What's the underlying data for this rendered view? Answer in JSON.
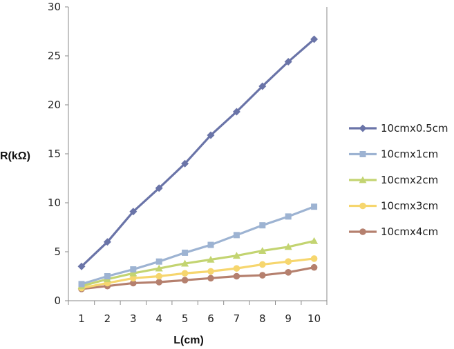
{
  "chart_data": {
    "type": "line",
    "title": "",
    "xlabel": "L(cm)",
    "ylabel": "R(kΩ)",
    "x": [
      1,
      2,
      3,
      4,
      5,
      6,
      7,
      8,
      9,
      10
    ],
    "x_tick_labels": [
      "1",
      "2",
      "3",
      "4",
      "5",
      "6",
      "7",
      "8",
      "9",
      "10"
    ],
    "ylim": [
      0,
      30
    ],
    "y_ticks": [
      0,
      5,
      10,
      15,
      20,
      25,
      30
    ],
    "grid": false,
    "legend_position": "right",
    "series": [
      {
        "name": "10cmx0.5cm",
        "color": "#6A74A8",
        "marker": "diamond",
        "values": [
          3.5,
          6.0,
          9.1,
          11.5,
          14.0,
          16.9,
          19.3,
          21.9,
          24.4,
          26.7
        ]
      },
      {
        "name": "10cmx1cm",
        "color": "#9DB3D2",
        "marker": "square",
        "values": [
          1.7,
          2.5,
          3.2,
          4.0,
          4.9,
          5.7,
          6.7,
          7.7,
          8.6,
          9.6
        ]
      },
      {
        "name": "10cmx2cm",
        "color": "#C3D471",
        "marker": "triangle",
        "values": [
          1.5,
          2.2,
          2.8,
          3.3,
          3.8,
          4.2,
          4.6,
          5.1,
          5.5,
          6.1
        ]
      },
      {
        "name": "10cmx3cm",
        "color": "#F6D66E",
        "marker": "circle",
        "values": [
          1.3,
          1.8,
          2.3,
          2.5,
          2.8,
          3.0,
          3.3,
          3.7,
          4.0,
          4.3
        ]
      },
      {
        "name": "10cmx4cm",
        "color": "#B5806E",
        "marker": "circle",
        "values": [
          1.2,
          1.5,
          1.8,
          1.9,
          2.1,
          2.3,
          2.5,
          2.6,
          2.9,
          3.4
        ]
      }
    ]
  }
}
